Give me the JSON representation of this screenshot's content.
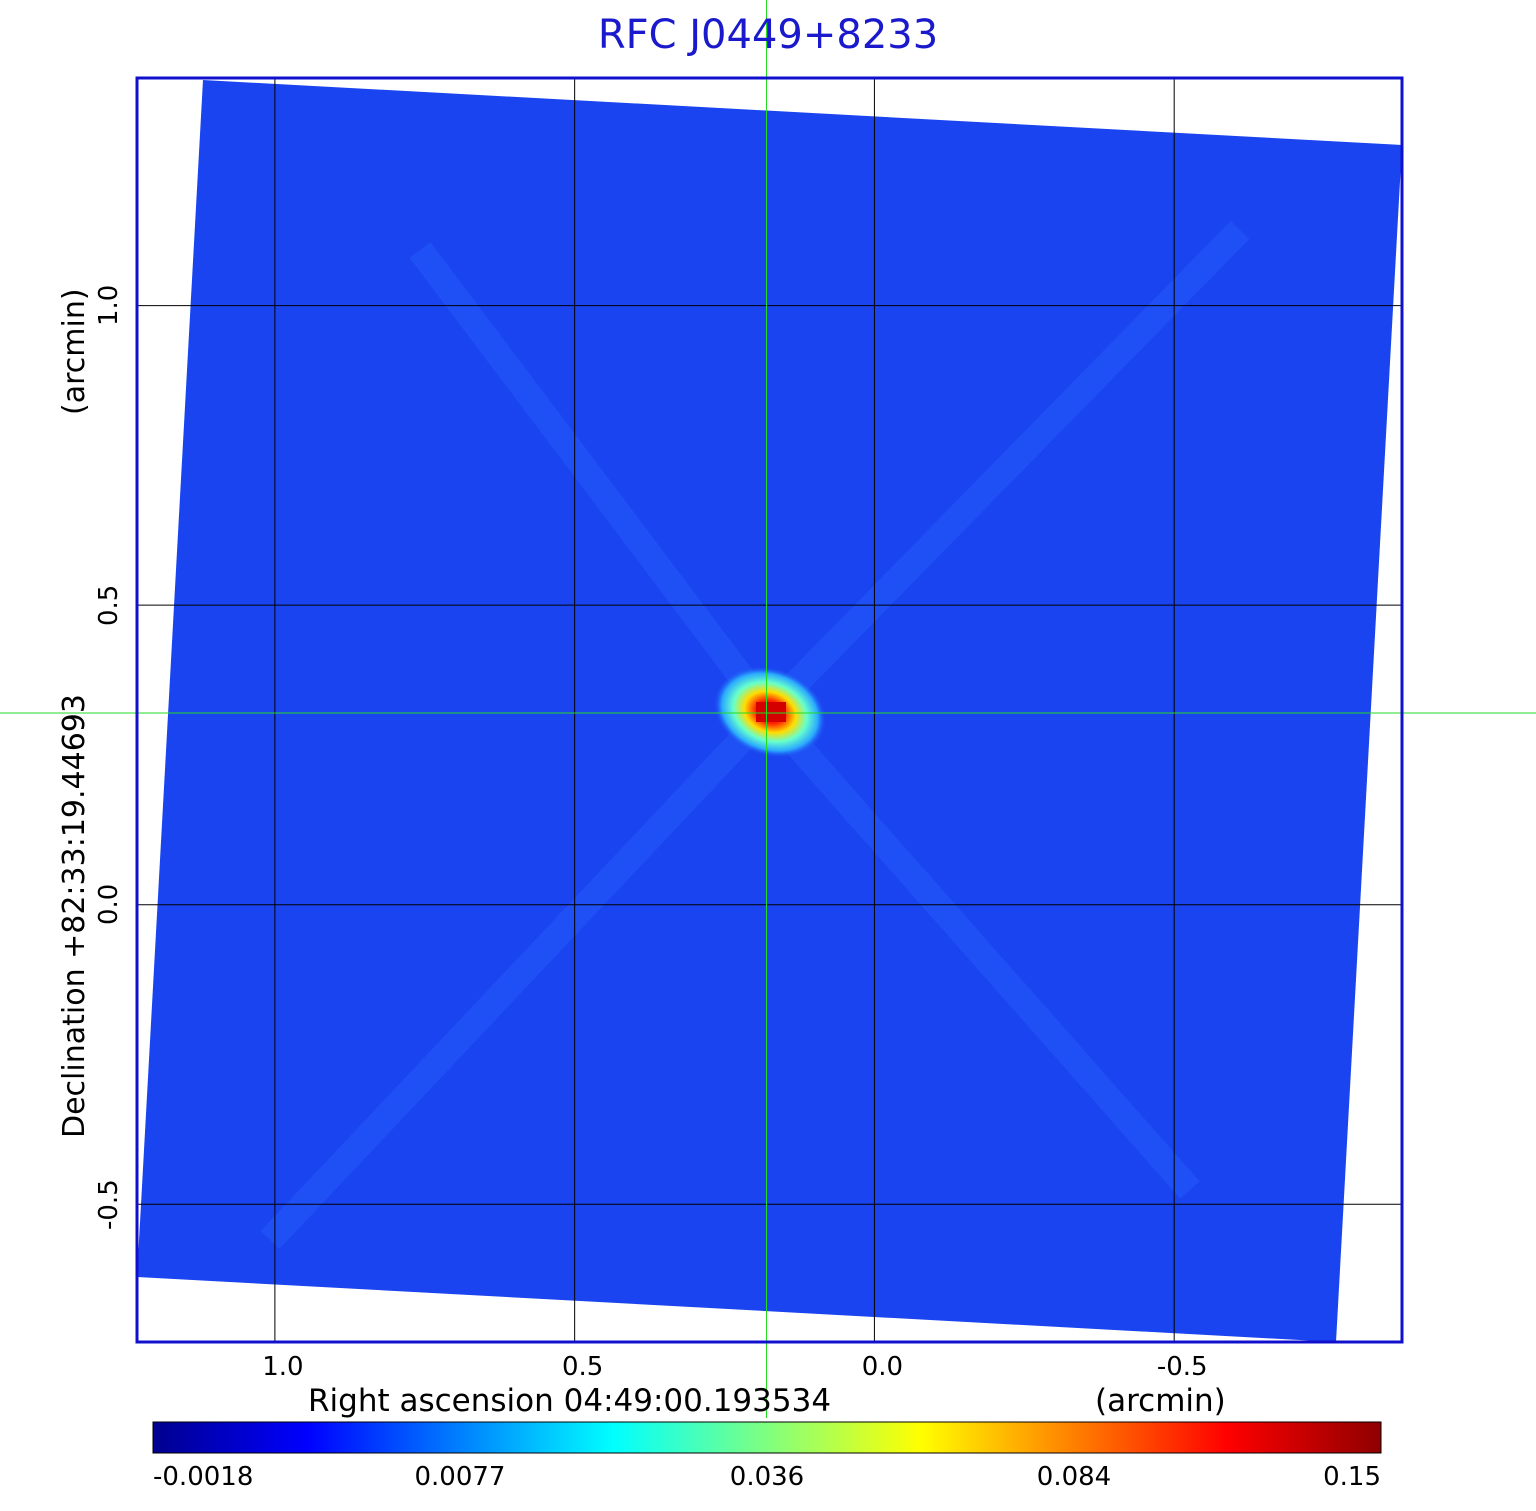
{
  "chart_data": {
    "type": "heatmap",
    "title": "RFC J0449+8233",
    "xlabel": "Right ascension  04:49:00.193534",
    "xunit": "(arcmin)",
    "ylabel": "Declination  +82:33:19.44693",
    "yunit": "(arcmin)",
    "x_ticks": [
      "1.0",
      "0.5",
      "0.0",
      "-0.5"
    ],
    "y_ticks": [
      "1.0",
      "0.5",
      "0.0",
      "-0.5"
    ],
    "x_tick_values": [
      1.0,
      0.5,
      0.0,
      -0.5
    ],
    "y_tick_values": [
      1.0,
      0.5,
      0.0,
      -0.5
    ],
    "xlim": [
      1.23,
      -0.88
    ],
    "ylim": [
      -0.73,
      1.38
    ],
    "grid": true,
    "crosshair": {
      "x": 0.18,
      "y": 0.32
    },
    "source_peak": {
      "x": 0.17,
      "y": 0.32,
      "value": 0.15
    },
    "colorbar": {
      "labels": [
        "-0.0018",
        "0.0077",
        "0.036",
        "0.084",
        "0.15"
      ],
      "colormap": "jet"
    },
    "colors": {
      "background_field": "#1a44f0",
      "frame": "#1010cc",
      "grid": "#000000",
      "crosshair": "#22dd22",
      "title": "#1a1acc"
    }
  }
}
